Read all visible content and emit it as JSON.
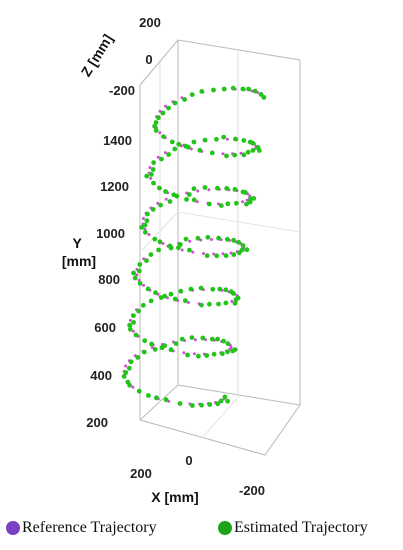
{
  "chart_data": {
    "type": "scatter",
    "projection": "3d",
    "axes": {
      "x": {
        "label": "X [mm]",
        "ticks": [
          "200",
          "0",
          "-200"
        ],
        "range": [
          200,
          -200
        ]
      },
      "y": {
        "label": "Y\n[mm]",
        "ticks": [
          "200",
          "400",
          "600",
          "800",
          "1000",
          "1200",
          "1400"
        ],
        "range": [
          100,
          1550
        ]
      },
      "z": {
        "label": "Z [mm]",
        "ticks": [
          "200",
          "0",
          "-200"
        ],
        "range": [
          200,
          -200
        ]
      }
    },
    "grid": true,
    "series": [
      {
        "name": "Reference Trajectory",
        "color": "#d04fd6",
        "shape": "helix",
        "y_start": 200,
        "y_end": 1500,
        "turns": 6,
        "radius": 120,
        "point_count": 180
      },
      {
        "name": "Estimated Trajectory",
        "color": "#23c41a",
        "shape": "helix",
        "y_start": 200,
        "y_end": 1500,
        "turns": 6,
        "radius": 120,
        "point_count": 180
      }
    ],
    "legend": {
      "placement": "bottom",
      "marker_colors": [
        "#7a3fc2",
        "#1fa31a"
      ]
    }
  }
}
